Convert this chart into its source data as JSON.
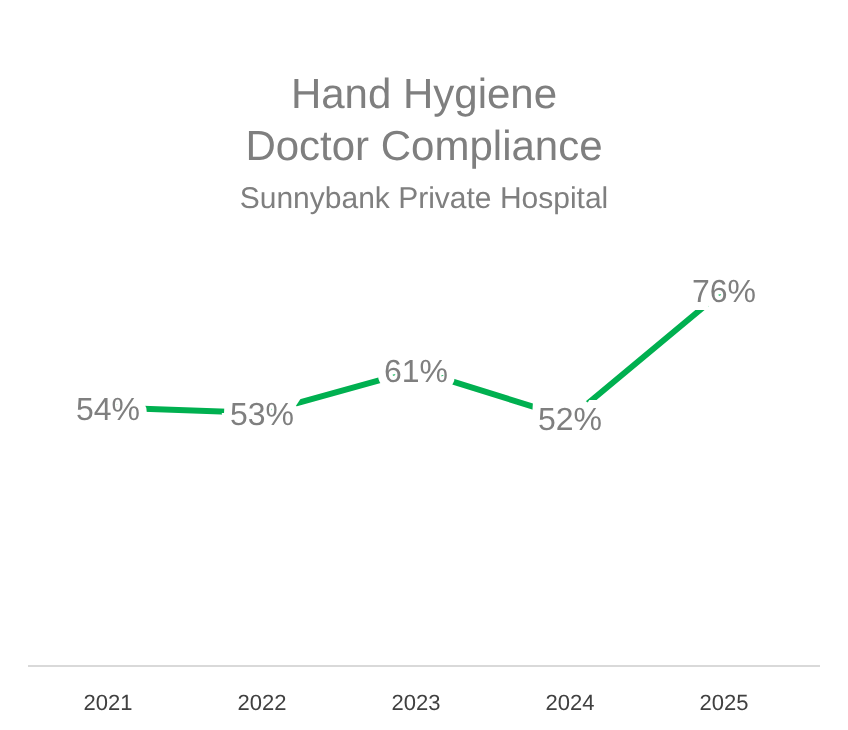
{
  "chart_data": {
    "type": "line",
    "title": "Hand Hygiene\nDoctor Compliance",
    "subtitle": "Sunnybank Private Hospital",
    "categories": [
      "2021",
      "2022",
      "2023",
      "2024",
      "2025"
    ],
    "series": [
      {
        "color": "#00b050",
        "values": [
          54,
          53,
          61,
          52,
          76
        ],
        "value_labels": [
          "54%",
          "53%",
          "61%",
          "52%",
          "76%"
        ]
      }
    ]
  }
}
